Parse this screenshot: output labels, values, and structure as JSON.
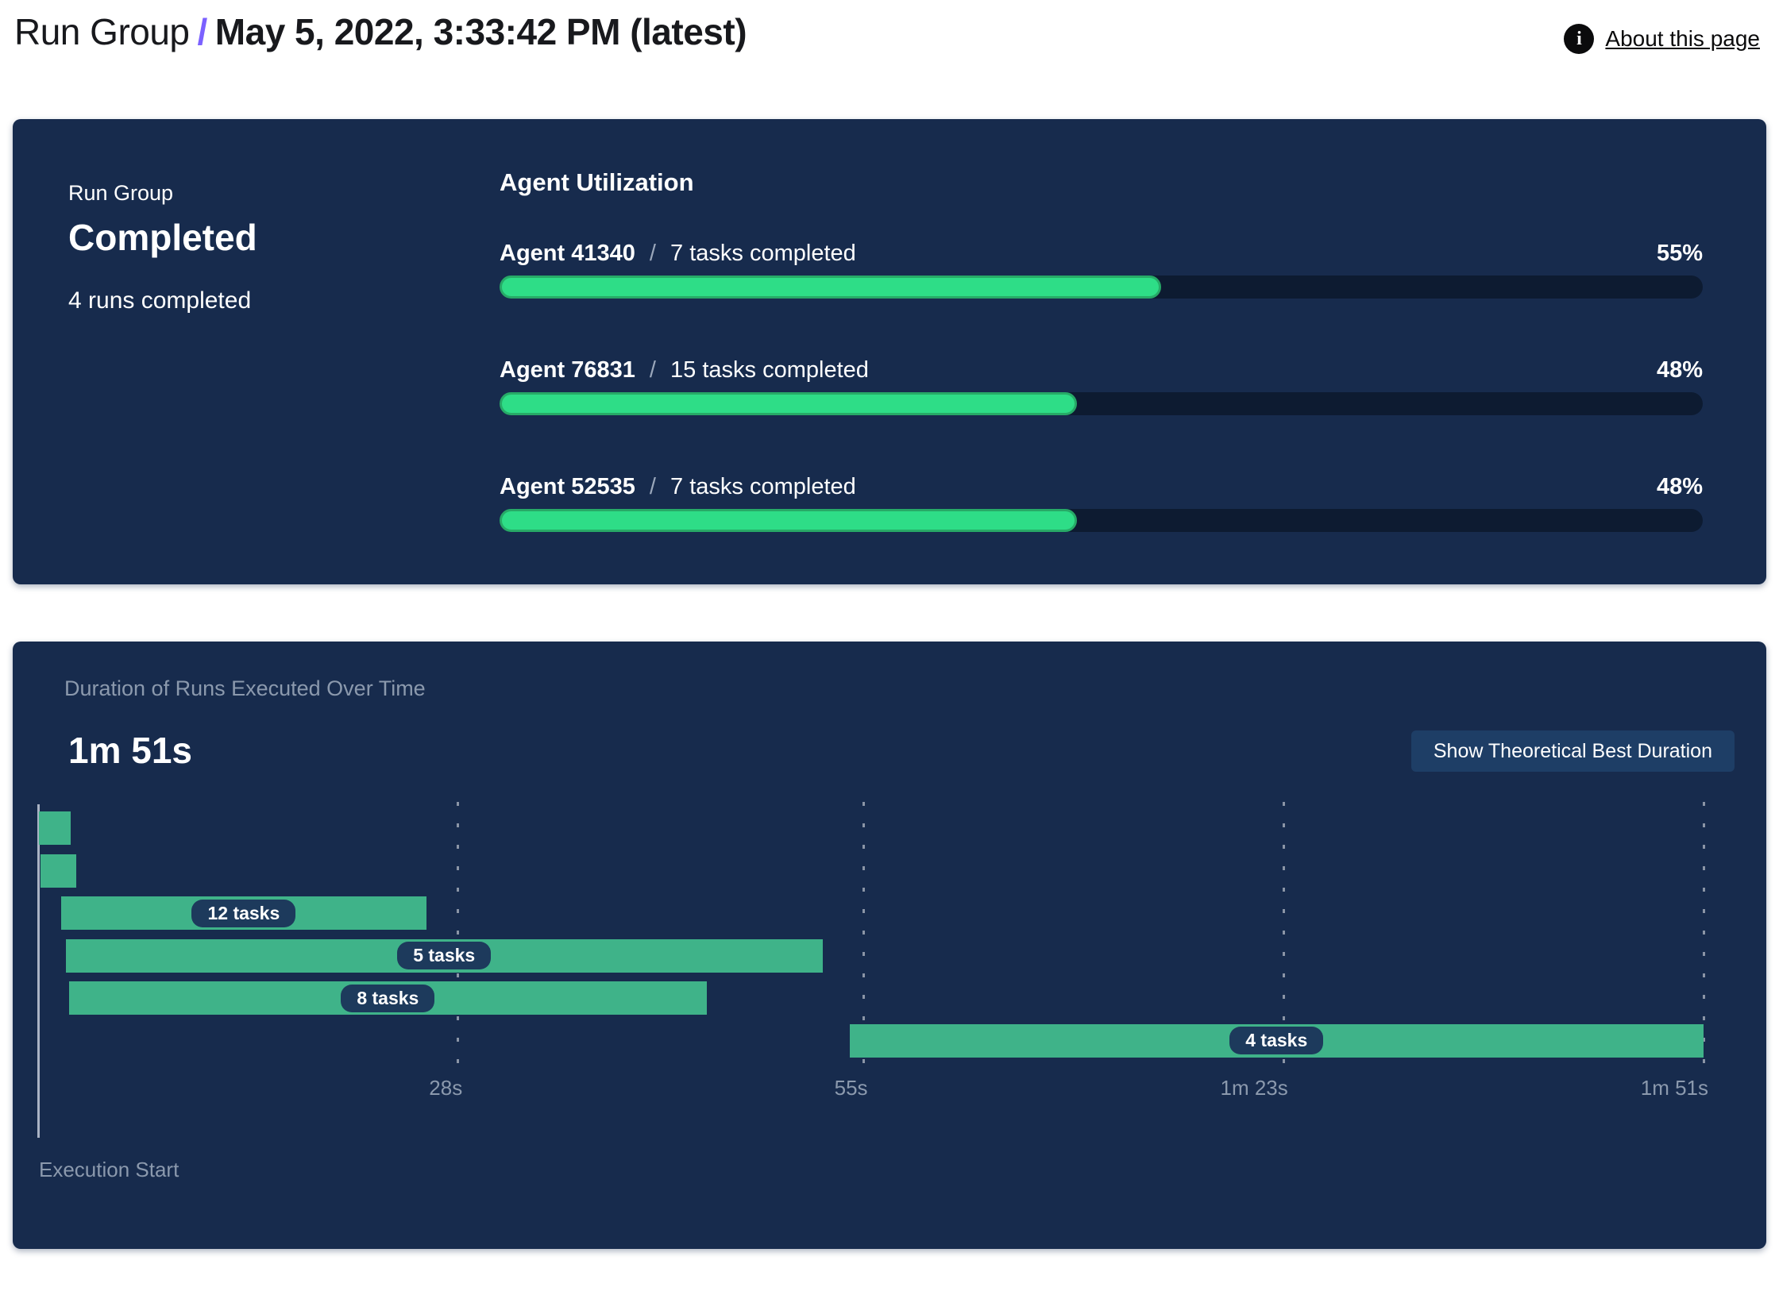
{
  "header": {
    "breadcrumb_root": "Run Group",
    "separator": "/",
    "title": "May 5, 2022, 3:33:42 PM (latest)",
    "about_link": "About this page",
    "info_icon_glyph": "i",
    "accent_color": "#7b61ff"
  },
  "status_panel": {
    "label": "Run Group",
    "status": "Completed",
    "subtitle": "4 runs completed",
    "section_title": "Agent Utilization",
    "agents": [
      {
        "name": "Agent 41340",
        "separator": "/",
        "tasks": "7 tasks completed",
        "percent": 55,
        "percent_label": "55%"
      },
      {
        "name": "Agent 76831",
        "separator": "/",
        "tasks": "15 tasks completed",
        "percent": 48,
        "percent_label": "48%"
      },
      {
        "name": "Agent 52535",
        "separator": "/",
        "tasks": "7 tasks completed",
        "percent": 48,
        "percent_label": "48%"
      }
    ],
    "colors": {
      "panel_bg": "#172b4d",
      "track": "#0d1b31",
      "fill": "#2edd87",
      "fill_border": "#27aa67"
    }
  },
  "duration_panel": {
    "title": "Duration of Runs Executed Over Time",
    "total_duration": "1m 51s",
    "button_label": "Show Theoretical Best Duration",
    "execution_start_label": "Execution Start",
    "colors": {
      "bar": "#3fb389",
      "pill_bg": "#1d3a5c",
      "button_bg": "#1e3e66",
      "muted_text": "#8b99ad"
    }
  },
  "chart_data": {
    "type": "bar",
    "subtype": "gantt-run-durations",
    "title": "Duration of Runs Executed Over Time",
    "total_duration": "1m 51s",
    "x_ticks": [
      "28s",
      "55s",
      "1m 23s",
      "1m 51s"
    ],
    "x_tick_seconds": [
      28,
      55,
      83,
      111
    ],
    "x_range_seconds": [
      0,
      111
    ],
    "grid": "dashed-vertical",
    "annotation": "Execution Start",
    "bars": [
      {
        "label": "",
        "start_s": 0.1,
        "end_s": 2.2
      },
      {
        "label": "",
        "start_s": 0.2,
        "end_s": 2.6
      },
      {
        "label": "12 tasks",
        "start_s": 1.6,
        "end_s": 25.9
      },
      {
        "label": "5 tasks",
        "start_s": 1.9,
        "end_s": 52.3
      },
      {
        "label": "8 tasks",
        "start_s": 2.1,
        "end_s": 44.6
      },
      {
        "label": "4 tasks",
        "start_s": 54.1,
        "end_s": 111
      }
    ]
  }
}
